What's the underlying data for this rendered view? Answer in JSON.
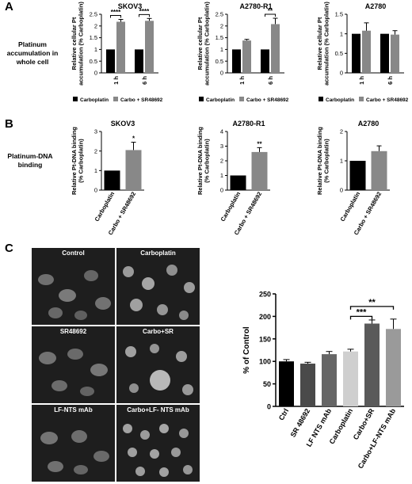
{
  "panels": {
    "A": {
      "letter": "A",
      "row_label": "Platinum accumulation in whole cell"
    },
    "B": {
      "letter": "B",
      "row_label": "Platinum-DNA binding"
    },
    "C": {
      "letter": "C"
    }
  },
  "legend_a": {
    "carboplatin": "Carboplatin",
    "combo": "Carbo + SR48692"
  },
  "micrographs": [
    {
      "label": "Control"
    },
    {
      "label": "Carboplatin"
    },
    {
      "label": "SR48692"
    },
    {
      "label": "Carbo+SR"
    },
    {
      "label": "LF-NTS mAb"
    },
    {
      "label": "Carbo+LF- NTS mAb"
    }
  ],
  "chart_data": [
    {
      "type": "bar",
      "title": "SKOV3",
      "ylabel": "Relative cellular Pt accumulation (% Carboplatin)",
      "categories": [
        "1 h",
        "6 h"
      ],
      "ylim": [
        0,
        2.5
      ],
      "yticks": [
        "0",
        "0.5",
        "1",
        "1.5",
        "2",
        "2.5"
      ],
      "series": [
        {
          "name": "Carboplatin",
          "values": [
            1.0,
            1.0
          ],
          "err": [
            0,
            0
          ],
          "color": "#000000"
        },
        {
          "name": "Carbo + SR48692",
          "values": [
            2.18,
            2.22
          ],
          "err": [
            0.1,
            0.1
          ],
          "color": "#888888"
        }
      ],
      "significance": [
        "****",
        "****"
      ]
    },
    {
      "type": "bar",
      "title": "A2780-R1",
      "ylabel": "Relative cellular Pt accumulation (% Carboplatin)",
      "categories": [
        "1 h",
        "6 h"
      ],
      "ylim": [
        0,
        2.5
      ],
      "yticks": [
        "0",
        "0.5",
        "1",
        "1.5",
        "2",
        "2.5"
      ],
      "series": [
        {
          "name": "Carboplatin",
          "values": [
            1.0,
            1.0
          ],
          "err": [
            0,
            0
          ],
          "color": "#000000"
        },
        {
          "name": "Carbo + SR48692",
          "values": [
            1.38,
            2.08
          ],
          "err": [
            0.05,
            0.25
          ],
          "color": "#888888"
        }
      ],
      "significance": [
        "",
        "**"
      ]
    },
    {
      "type": "bar",
      "title": "A2780",
      "ylabel": "Relative cellular Pt accumulation (% Carboplatin)",
      "categories": [
        "1 h",
        "6 h"
      ],
      "ylim": [
        0,
        1.5
      ],
      "yticks": [
        "0",
        "0.5",
        "1",
        "1.5"
      ],
      "series": [
        {
          "name": "Carboplatin",
          "values": [
            1.0,
            1.0
          ],
          "err": [
            0,
            0
          ],
          "color": "#000000"
        },
        {
          "name": "Carbo + SR48692",
          "values": [
            1.08,
            0.98
          ],
          "err": [
            0.2,
            0.1
          ],
          "color": "#888888"
        }
      ],
      "significance": [
        "",
        ""
      ]
    },
    {
      "type": "bar",
      "title": "SKOV3",
      "ylabel": "Relative Pt-DNA binding (% Carboplatin)",
      "categories": [
        "Carboplatin",
        "Carbo + SR48692"
      ],
      "ylim": [
        0,
        3
      ],
      "yticks": [
        "0",
        "1",
        "2",
        "3"
      ],
      "values": [
        1.0,
        2.05
      ],
      "err": [
        0,
        0.4
      ],
      "colors": [
        "#000000",
        "#888888"
      ],
      "significance": [
        "",
        "*"
      ]
    },
    {
      "type": "bar",
      "title": "A2780-R1",
      "ylabel": "Relative Pt-DNA binding (% Carboplatin)",
      "categories": [
        "Carboplatin",
        "Carbo + SR48692"
      ],
      "ylim": [
        0,
        4
      ],
      "yticks": [
        "0",
        "1",
        "2",
        "3",
        "4"
      ],
      "values": [
        1.0,
        2.6
      ],
      "err": [
        0,
        0.3
      ],
      "colors": [
        "#000000",
        "#888888"
      ],
      "significance": [
        "",
        "**"
      ]
    },
    {
      "type": "bar",
      "title": "A2780",
      "ylabel": "Relative Pt-DNA binding (% Carboplatin)",
      "categories": [
        "Carboplatin",
        "Carbo + SR48692"
      ],
      "ylim": [
        0,
        2
      ],
      "yticks": [
        "0",
        "1",
        "2"
      ],
      "values": [
        1.0,
        1.33
      ],
      "err": [
        0,
        0.18
      ],
      "colors": [
        "#000000",
        "#888888"
      ],
      "significance": [
        "",
        ""
      ]
    },
    {
      "type": "bar",
      "title": "",
      "ylabel": "% of Control",
      "categories": [
        "Ctrl",
        "SR 48692",
        "LF NTS mAb",
        "Carboplatin",
        "Carbo+SR",
        "Carbo+LF-NTS mAb"
      ],
      "ylim": [
        0,
        250
      ],
      "yticks": [
        "0",
        "50",
        "100",
        "150",
        "200",
        "250"
      ],
      "values": [
        100,
        95,
        116,
        122,
        184,
        172
      ],
      "err": [
        4,
        3,
        6,
        5,
        8,
        22
      ],
      "colors": [
        "#000000",
        "#4a4a4a",
        "#666666",
        "#cfcfcf",
        "#5a5a5a",
        "#9a9a9a"
      ],
      "brackets": [
        {
          "from": 3,
          "to": 4,
          "label": "***"
        },
        {
          "from": 3,
          "to": 5,
          "label": "**"
        }
      ]
    }
  ]
}
